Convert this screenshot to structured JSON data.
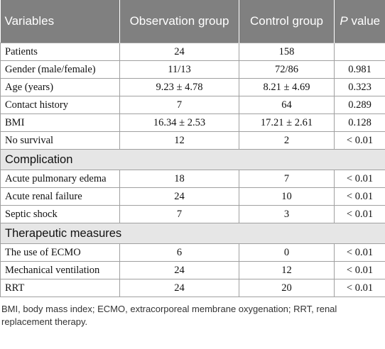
{
  "table": {
    "header": [
      "Variables",
      "Observation group",
      "Control group",
      [
        "P",
        " value"
      ]
    ],
    "sections": [
      {
        "rows": [
          [
            "Patients",
            "24",
            "158",
            null
          ],
          [
            "Gender (male/female)",
            "11/13",
            "72/86",
            "0.981"
          ],
          [
            "Age (years)",
            "9.23 ± 4.78",
            "8.21 ± 4.69",
            "0.323"
          ],
          [
            "Contact history",
            "7",
            "64",
            "0.289"
          ],
          [
            "BMI",
            "16.34 ± 2.53",
            "17.21 ± 2.61",
            "0.128"
          ],
          [
            "No survival",
            "12",
            "2",
            "< 0.01"
          ]
        ]
      },
      {
        "title": "Complication",
        "rows": [
          [
            "Acute pulmonary edema",
            "18",
            "7",
            "< 0.01"
          ],
          [
            "Acute renal failure",
            "24",
            "10",
            "< 0.01"
          ],
          [
            "Septic shock",
            "7",
            "3",
            "< 0.01"
          ]
        ]
      },
      {
        "title": "Therapeutic measures",
        "rows": [
          [
            "The use of ECMO",
            "6",
            "0",
            "< 0.01"
          ],
          [
            "Mechanical ventilation",
            "24",
            "12",
            "< 0.01"
          ],
          [
            "RRT",
            "24",
            "20",
            "< 0.01"
          ]
        ]
      }
    ]
  },
  "footnote": "BMI, body mass index; ECMO, extracorporeal membrane oxygenation; RRT, renal replacement therapy."
}
